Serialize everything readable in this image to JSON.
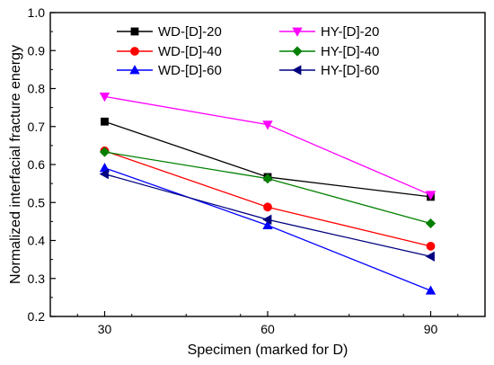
{
  "chart_data": {
    "type": "line",
    "title": "",
    "xlabel": "Specimen (marked for D)",
    "ylabel": "Normalized interfacial fracture energy",
    "x": [
      30,
      60,
      90
    ],
    "x_ticks": [
      "30",
      "60",
      "90"
    ],
    "xlim": [
      20,
      100
    ],
    "ylim": [
      0.2,
      1.0
    ],
    "y_ticks": [
      "0.2",
      "0.3",
      "0.4",
      "0.5",
      "0.6",
      "0.7",
      "0.8",
      "0.9",
      "1.0"
    ],
    "grid": false,
    "legend_position": "top",
    "series": [
      {
        "name": "WD-[D]-20",
        "values": [
          0.713,
          0.567,
          0.515
        ],
        "color": "#000000",
        "marker": "square"
      },
      {
        "name": "HY-[D]-20",
        "values": [
          0.779,
          0.705,
          0.52
        ],
        "color": "#ff00ff",
        "marker": "triangle-down"
      },
      {
        "name": "WD-[D]-40",
        "values": [
          0.636,
          0.488,
          0.385
        ],
        "color": "#ff0000",
        "marker": "circle"
      },
      {
        "name": "HY-[D]-40",
        "values": [
          0.633,
          0.563,
          0.445
        ],
        "color": "#008000",
        "marker": "diamond"
      },
      {
        "name": "WD-[D]-60",
        "values": [
          0.591,
          0.44,
          0.268
        ],
        "color": "#0000ff",
        "marker": "triangle-up"
      },
      {
        "name": "HY-[D]-60",
        "values": [
          0.575,
          0.455,
          0.358
        ],
        "color": "#000080",
        "marker": "triangle-left"
      }
    ]
  }
}
